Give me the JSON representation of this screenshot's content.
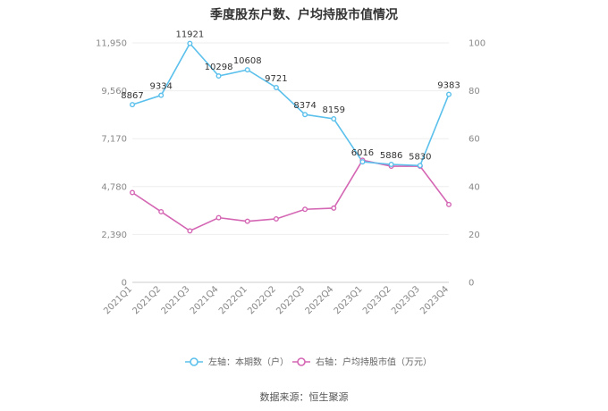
{
  "title": "季度股东户数、户均持股市值情况",
  "source_text": "数据来源：恒生聚源",
  "legend": {
    "left": "左轴：本期数（户）",
    "right": "右轴：户均持股市值（万元）"
  },
  "colors": {
    "series1": "#5bc0ec",
    "series2": "#d466b4",
    "grid": "#eeeeee",
    "axis": "#cccccc"
  },
  "chart_data": {
    "type": "line",
    "categories": [
      "2021Q1",
      "2021Q2",
      "2021Q3",
      "2021Q4",
      "2022Q1",
      "2022Q2",
      "2022Q3",
      "2022Q4",
      "2023Q1",
      "2023Q2",
      "2023Q3",
      "2023Q4"
    ],
    "left_axis": {
      "ticks": [
        "0",
        "2,390",
        "4,780",
        "7,170",
        "9,560",
        "11,950"
      ],
      "range": [
        0,
        11950
      ]
    },
    "right_axis": {
      "ticks": [
        "0",
        "20",
        "40",
        "60",
        "80",
        "100"
      ],
      "range": [
        0,
        100
      ]
    },
    "series": [
      {
        "name": "左轴：本期数（户）",
        "axis": "left",
        "values": [
          8867,
          9334,
          11921,
          10298,
          10608,
          9721,
          8374,
          8159,
          6016,
          5886,
          5830,
          9383
        ],
        "labels": [
          "8867",
          "9334",
          "11921",
          "10298",
          "10608",
          "9721",
          "8374",
          "8159",
          "6016",
          "5886",
          "5830",
          "9383"
        ]
      },
      {
        "name": "右轴：户均持股市值（万元）",
        "axis": "right",
        "values": [
          37.5,
          29.5,
          21.5,
          27,
          25.5,
          26.5,
          30.5,
          31,
          51,
          48.5,
          48.5,
          32.5
        ]
      }
    ],
    "legend_position": "bottom",
    "grid": true
  }
}
